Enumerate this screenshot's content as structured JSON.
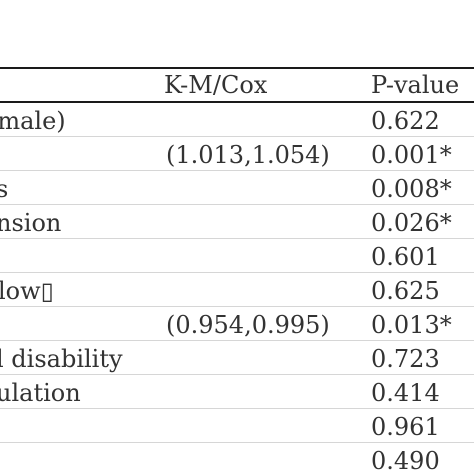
{
  "table": {
    "headers": {
      "km_cox": "K-M/Cox",
      "p_value": "P-value"
    },
    "rows": [
      {
        "variable": "(male)",
        "ci": "",
        "p": "0.622"
      },
      {
        "variable": "",
        "ci": "(1.013,1.054)",
        "p": "0.001*"
      },
      {
        "variable": "s",
        "ci": "",
        "p": "0.008*"
      },
      {
        "variable": "nsion",
        "ci": "",
        "p": "0.026*"
      },
      {
        "variable": "",
        "ci": "",
        "p": "0.601"
      },
      {
        "variable": "low▯",
        "ci": "",
        "p": "0.625"
      },
      {
        "variable": "",
        "ci": "(0.954,0.995)",
        "p": "0.013*"
      },
      {
        "variable": "l disability",
        "ci": "",
        "p": "0.723"
      },
      {
        "variable": "ulation",
        "ci": "",
        "p": "0.414"
      },
      {
        "variable": "",
        "ci": "",
        "p": "0.961"
      },
      {
        "variable": "",
        "ci": "",
        "p": "0.490"
      }
    ]
  }
}
